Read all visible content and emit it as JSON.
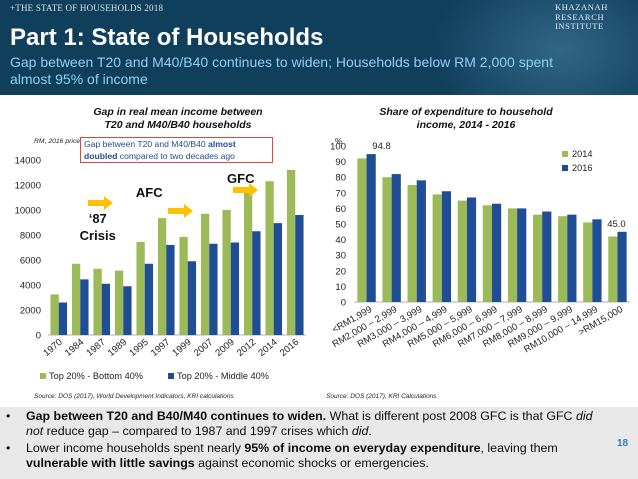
{
  "header": {
    "supertitle": "+THE STATE OF HOUSEHOLDS 2018",
    "title": "Part 1: State of Households",
    "subtitle": "Gap between T20 and M40/B40 continues to widen; Households below RM 2,000 spent almost 95% of income",
    "logo_lines": [
      "KHAZANAH",
      "RESEARCH",
      "INSTITUTE"
    ]
  },
  "colors": {
    "header_bg": "#103f5c",
    "green": "#9cbb58",
    "blue": "#1f4e96",
    "arrow": "#ffc000",
    "callout_border": "#e0443a"
  },
  "chart_data": [
    {
      "type": "bar",
      "title": "Gap in real mean income between T20 and M40/B40 households",
      "units_note": "RM, 2016 prices",
      "categories": [
        "1970",
        "1984",
        "1987",
        "1989",
        "1995",
        "1997",
        "1999",
        "2007",
        "2009",
        "2012",
        "2014",
        "2016"
      ],
      "series": [
        {
          "name": "Top 20% - Bottom 40%",
          "values": [
            3250,
            5700,
            5300,
            5150,
            7450,
            9350,
            7850,
            9700,
            10000,
            11400,
            12300,
            13200
          ]
        },
        {
          "name": "Top 20% - Middle 40%",
          "values": [
            2600,
            4450,
            4100,
            3900,
            5700,
            7200,
            5900,
            7300,
            7400,
            8300,
            8950,
            9600
          ]
        }
      ],
      "ylim": [
        0,
        14000
      ],
      "yticks": [
        0,
        2000,
        4000,
        6000,
        8000,
        10000,
        12000,
        14000
      ],
      "annotations": [
        {
          "text": "‘87 Crisis",
          "category_index": 2
        },
        {
          "text": "AFC",
          "category_index": 5
        },
        {
          "text": "GFC",
          "category_index": 8
        }
      ],
      "callout": {
        "prefix": "Gap between T20 and M40/B40 ",
        "bold1": "almost",
        "bold2": "doubled",
        "suffix": " compared to two decades ago"
      },
      "legend": "bottom",
      "source": "Source: DOS (2017), World Development Indicators, KRI calculations"
    },
    {
      "type": "bar",
      "title": "Share of expenditure to household income, 2014 - 2016",
      "ylabel": "%",
      "categories": [
        "<RM1,999",
        "RM2,000 – 2,999",
        "RM3,000 – 3,999",
        "RM4,000 – 4,999",
        "RM5,000 – 5,999",
        "RM6,000 – 6,999",
        "RM7,000 – 7,999",
        "RM8,000 – 8,999",
        "RM9,000 – 9,999",
        "RM10,000 – 14,999",
        ">RM15,000"
      ],
      "series": [
        {
          "name": "2014",
          "values": [
            92,
            80,
            75,
            69,
            65,
            62,
            60,
            56,
            55,
            51,
            42
          ]
        },
        {
          "name": "2016",
          "values": [
            94.8,
            82,
            78,
            71,
            67,
            63,
            60,
            58,
            56,
            53,
            45.0
          ]
        }
      ],
      "data_labels": [
        {
          "series_index": 1,
          "category_index": 0,
          "text": "94.8"
        },
        {
          "series_index": 1,
          "category_index": 10,
          "text": "45.0"
        }
      ],
      "ylim": [
        0,
        100
      ],
      "yticks": [
        0,
        10,
        20,
        30,
        40,
        50,
        60,
        70,
        80,
        90,
        100
      ],
      "legend": "top-right",
      "source": "Source: DOS (2017), KRI Calculations"
    }
  ],
  "bullets": [
    {
      "parts": [
        {
          "b": true,
          "t": "Gap between T20 and B40/M40 continues to widen."
        },
        {
          "t": " What is different post 2008 GFC is that GFC "
        },
        {
          "i": true,
          "t": "did not"
        },
        {
          "t": " reduce gap – compared to 1987 and 1997 crises which "
        },
        {
          "i": true,
          "t": "did"
        },
        {
          "t": "."
        }
      ]
    },
    {
      "parts": [
        {
          "t": "Lower income households spent nearly "
        },
        {
          "b": true,
          "t": "95% of income on everyday expenditure"
        },
        {
          "t": ", leaving them "
        },
        {
          "b": true,
          "t": "vulnerable with little savings"
        },
        {
          "t": " against economic shocks or emergencies."
        }
      ]
    }
  ],
  "bullet_symbol": "•",
  "page_number": "18"
}
